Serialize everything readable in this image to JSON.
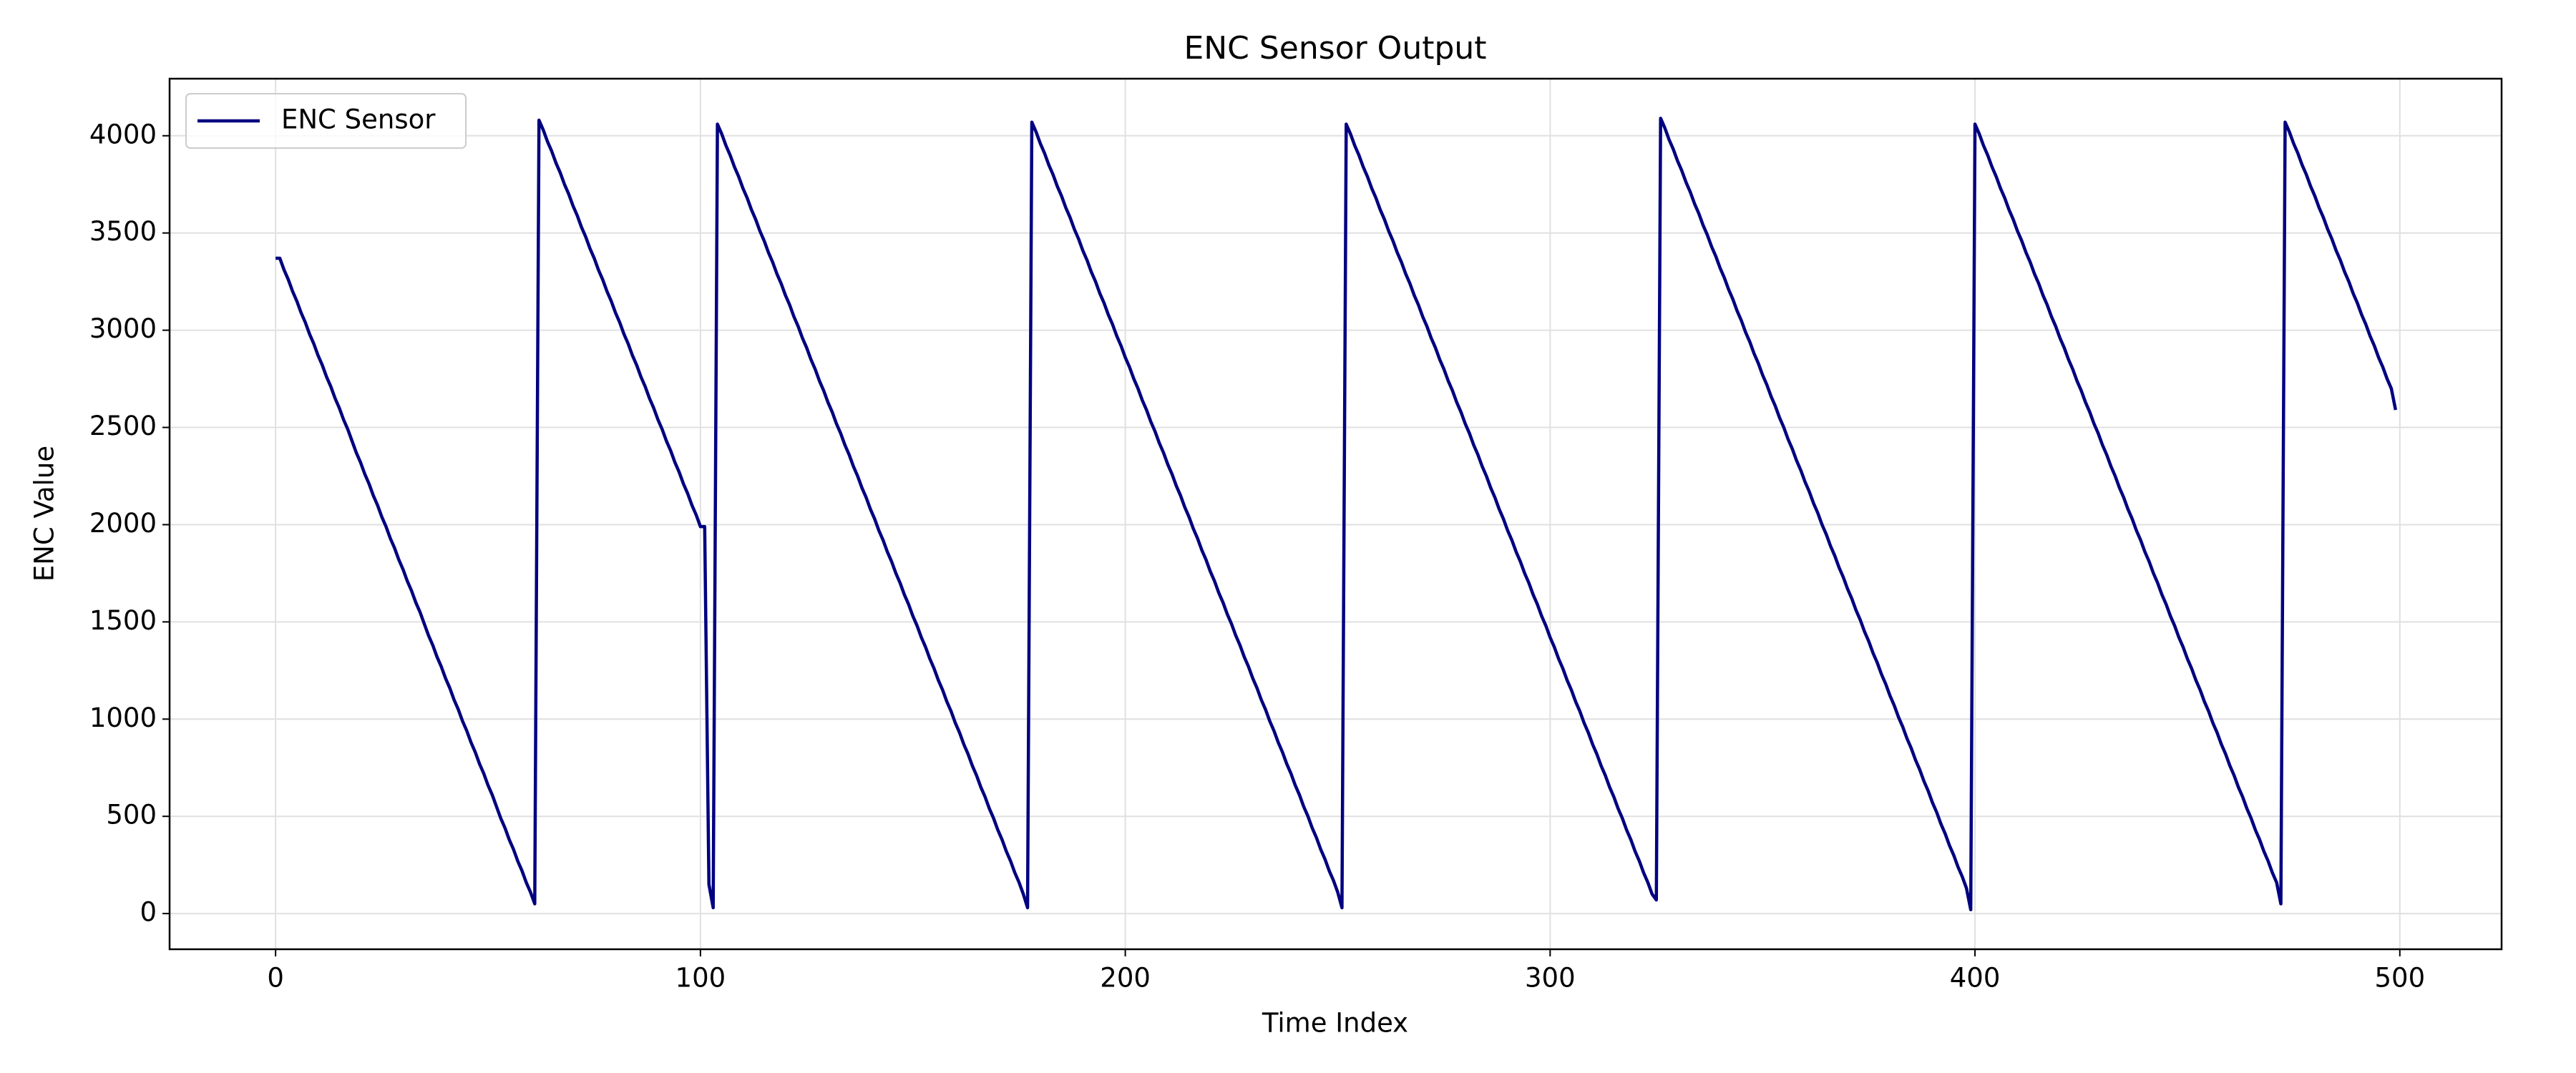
{
  "chart_data": {
    "type": "line",
    "title": "ENC Sensor Output",
    "xlabel": "Time Index",
    "ylabel": "ENC Value",
    "xlim": [
      -24.95,
      523.95
    ],
    "ylim": [
      -183.5,
      4293.5
    ],
    "xticks": [
      0,
      100,
      200,
      300,
      400,
      500
    ],
    "yticks": [
      0,
      500,
      1000,
      1500,
      2000,
      2500,
      3000,
      3500,
      4000
    ],
    "grid": true,
    "legend": "upper left",
    "x": [
      0,
      1,
      2,
      3,
      4,
      5,
      6,
      7,
      8,
      9,
      10,
      11,
      12,
      13,
      14,
      15,
      16,
      17,
      18,
      19,
      20,
      21,
      22,
      23,
      24,
      25,
      26,
      27,
      28,
      29,
      30,
      31,
      32,
      33,
      34,
      35,
      36,
      37,
      38,
      39,
      40,
      41,
      42,
      43,
      44,
      45,
      46,
      47,
      48,
      49,
      50,
      51,
      52,
      53,
      54,
      55,
      56,
      57,
      58,
      59,
      60,
      61,
      62,
      63,
      64,
      65,
      66,
      67,
      68,
      69,
      70,
      71,
      72,
      73,
      74,
      75,
      76,
      77,
      78,
      79,
      80,
      81,
      82,
      83,
      84,
      85,
      86,
      87,
      88,
      89,
      90,
      91,
      92,
      93,
      94,
      95,
      96,
      97,
      98,
      99,
      100,
      101,
      102,
      103,
      104,
      105,
      106,
      107,
      108,
      109,
      110,
      111,
      112,
      113,
      114,
      115,
      116,
      117,
      118,
      119,
      120,
      121,
      122,
      123,
      124,
      125,
      126,
      127,
      128,
      129,
      130,
      131,
      132,
      133,
      134,
      135,
      136,
      137,
      138,
      139,
      140,
      141,
      142,
      143,
      144,
      145,
      146,
      147,
      148,
      149,
      150,
      151,
      152,
      153,
      154,
      155,
      156,
      157,
      158,
      159,
      160,
      161,
      162,
      163,
      164,
      165,
      166,
      167,
      168,
      169,
      170,
      171,
      172,
      173,
      174,
      175,
      176,
      177,
      178,
      179,
      180,
      181,
      182,
      183,
      184,
      185,
      186,
      187,
      188,
      189,
      190,
      191,
      192,
      193,
      194,
      195,
      196,
      197,
      198,
      199,
      200,
      201,
      202,
      203,
      204,
      205,
      206,
      207,
      208,
      209,
      210,
      211,
      212,
      213,
      214,
      215,
      216,
      217,
      218,
      219,
      220,
      221,
      222,
      223,
      224,
      225,
      226,
      227,
      228,
      229,
      230,
      231,
      232,
      233,
      234,
      235,
      236,
      237,
      238,
      239,
      240,
      241,
      242,
      243,
      244,
      245,
      246,
      247,
      248,
      249,
      250,
      251,
      252,
      253,
      254,
      255,
      256,
      257,
      258,
      259,
      260,
      261,
      262,
      263,
      264,
      265,
      266,
      267,
      268,
      269,
      270,
      271,
      272,
      273,
      274,
      275,
      276,
      277,
      278,
      279,
      280,
      281,
      282,
      283,
      284,
      285,
      286,
      287,
      288,
      289,
      290,
      291,
      292,
      293,
      294,
      295,
      296,
      297,
      298,
      299,
      300,
      301,
      302,
      303,
      304,
      305,
      306,
      307,
      308,
      309,
      310,
      311,
      312,
      313,
      314,
      315,
      316,
      317,
      318,
      319,
      320,
      321,
      322,
      323,
      324,
      325,
      326,
      327,
      328,
      329,
      330,
      331,
      332,
      333,
      334,
      335,
      336,
      337,
      338,
      339,
      340,
      341,
      342,
      343,
      344,
      345,
      346,
      347,
      348,
      349,
      350,
      351,
      352,
      353,
      354,
      355,
      356,
      357,
      358,
      359,
      360,
      361,
      362,
      363,
      364,
      365,
      366,
      367,
      368,
      369,
      370,
      371,
      372,
      373,
      374,
      375,
      376,
      377,
      378,
      379,
      380,
      381,
      382,
      383,
      384,
      385,
      386,
      387,
      388,
      389,
      390,
      391,
      392,
      393,
      394,
      395,
      396,
      397,
      398,
      399,
      400,
      401,
      402,
      403,
      404,
      405,
      406,
      407,
      408,
      409,
      410,
      411,
      412,
      413,
      414,
      415,
      416,
      417,
      418,
      419,
      420,
      421,
      422,
      423,
      424,
      425,
      426,
      427,
      428,
      429,
      430,
      431,
      432,
      433,
      434,
      435,
      436,
      437,
      438,
      439,
      440,
      441,
      442,
      443,
      444,
      445,
      446,
      447,
      448,
      449,
      450,
      451,
      452,
      453,
      454,
      455,
      456,
      457,
      458,
      459,
      460,
      461,
      462,
      463,
      464,
      465,
      466,
      467,
      468,
      469,
      470,
      471,
      472,
      473,
      474,
      475,
      476,
      477,
      478,
      479,
      480,
      481,
      482,
      483,
      484,
      485,
      486,
      487,
      488,
      489,
      490,
      491,
      492,
      493,
      494,
      495,
      496,
      497,
      498,
      499
    ],
    "series": [
      {
        "name": "ENC Sensor",
        "color": "#000080",
        "values": [
          3370,
          3370,
          3310,
          3260,
          3200,
          3150,
          3090,
          3040,
          2980,
          2930,
          2870,
          2820,
          2760,
          2710,
          2650,
          2600,
          2540,
          2490,
          2430,
          2370,
          2320,
          2260,
          2210,
          2150,
          2100,
          2040,
          1990,
          1930,
          1880,
          1820,
          1770,
          1710,
          1660,
          1600,
          1550,
          1490,
          1430,
          1380,
          1320,
          1270,
          1210,
          1160,
          1100,
          1050,
          990,
          940,
          880,
          830,
          770,
          720,
          660,
          610,
          550,
          490,
          440,
          380,
          330,
          270,
          220,
          160,
          110,
          50,
          4080,
          4030,
          3970,
          3920,
          3860,
          3810,
          3750,
          3700,
          3640,
          3590,
          3530,
          3480,
          3420,
          3370,
          3310,
          3260,
          3200,
          3150,
          3090,
          3040,
          2980,
          2930,
          2870,
          2820,
          2760,
          2710,
          2650,
          2600,
          2540,
          2490,
          2430,
          2380,
          2320,
          2270,
          2210,
          2160,
          2100,
          2050,
          1990,
          1990,
          150,
          30,
          4060,
          4010,
          3950,
          3900,
          3840,
          3790,
          3730,
          3680,
          3620,
          3570,
          3510,
          3460,
          3400,
          3350,
          3290,
          3240,
          3180,
          3130,
          3070,
          3020,
          2960,
          2910,
          2850,
          2800,
          2740,
          2690,
          2630,
          2580,
          2520,
          2470,
          2410,
          2360,
          2300,
          2250,
          2190,
          2140,
          2080,
          2030,
          1970,
          1920,
          1860,
          1810,
          1750,
          1700,
          1640,
          1590,
          1530,
          1480,
          1420,
          1370,
          1310,
          1260,
          1200,
          1150,
          1090,
          1040,
          980,
          930,
          870,
          820,
          760,
          710,
          650,
          600,
          540,
          490,
          430,
          380,
          320,
          270,
          210,
          160,
          100,
          30,
          4070,
          4020,
          3960,
          3910,
          3850,
          3800,
          3740,
          3690,
          3630,
          3580,
          3520,
          3470,
          3410,
          3360,
          3300,
          3250,
          3190,
          3140,
          3080,
          3030,
          2970,
          2920,
          2860,
          2810,
          2750,
          2700,
          2640,
          2590,
          2530,
          2480,
          2420,
          2370,
          2310,
          2260,
          2200,
          2150,
          2090,
          2040,
          1980,
          1930,
          1870,
          1820,
          1760,
          1710,
          1650,
          1600,
          1540,
          1490,
          1430,
          1380,
          1320,
          1270,
          1210,
          1160,
          1100,
          1050,
          990,
          940,
          880,
          830,
          770,
          720,
          660,
          610,
          550,
          500,
          440,
          390,
          330,
          280,
          220,
          170,
          110,
          30,
          4060,
          4010,
          3950,
          3900,
          3840,
          3790,
          3730,
          3680,
          3620,
          3570,
          3510,
          3460,
          3400,
          3350,
          3290,
          3240,
          3180,
          3130,
          3070,
          3020,
          2960,
          2910,
          2850,
          2800,
          2740,
          2690,
          2630,
          2580,
          2520,
          2470,
          2410,
          2360,
          2300,
          2250,
          2190,
          2140,
          2080,
          2030,
          1970,
          1920,
          1860,
          1810,
          1750,
          1700,
          1640,
          1590,
          1530,
          1480,
          1420,
          1370,
          1310,
          1260,
          1200,
          1150,
          1090,
          1040,
          980,
          930,
          870,
          820,
          760,
          710,
          650,
          600,
          540,
          490,
          430,
          380,
          320,
          270,
          210,
          160,
          100,
          70,
          4090,
          4040,
          3980,
          3930,
          3870,
          3820,
          3760,
          3710,
          3650,
          3600,
          3540,
          3490,
          3430,
          3380,
          3320,
          3270,
          3210,
          3160,
          3100,
          3050,
          2990,
          2940,
          2880,
          2830,
          2770,
          2720,
          2660,
          2610,
          2550,
          2500,
          2440,
          2390,
          2330,
          2280,
          2220,
          2170,
          2110,
          2060,
          2000,
          1950,
          1890,
          1840,
          1780,
          1730,
          1670,
          1620,
          1560,
          1510,
          1450,
          1400,
          1340,
          1290,
          1230,
          1180,
          1120,
          1070,
          1010,
          960,
          900,
          850,
          790,
          740,
          680,
          630,
          570,
          520,
          460,
          410,
          350,
          300,
          240,
          190,
          130,
          20,
          4060,
          4010,
          3950,
          3900,
          3840,
          3790,
          3730,
          3680,
          3620,
          3570,
          3510,
          3460,
          3400,
          3350,
          3290,
          3240,
          3180,
          3130,
          3070,
          3020,
          2960,
          2910,
          2850,
          2800,
          2740,
          2690,
          2630,
          2580,
          2520,
          2470,
          2410,
          2360,
          2300,
          2250,
          2190,
          2140,
          2080,
          2030,
          1970,
          1920,
          1860,
          1810,
          1750,
          1700,
          1640,
          1590,
          1530,
          1480,
          1420,
          1370,
          1310,
          1260,
          1200,
          1150,
          1090,
          1040,
          980,
          930,
          870,
          820,
          760,
          710,
          650,
          600,
          540,
          490,
          430,
          380,
          320,
          270,
          210,
          160,
          50,
          4070,
          4020,
          3960,
          3910,
          3850,
          3800,
          3740,
          3690,
          3630,
          3580,
          3520,
          3470,
          3410,
          3360,
          3300,
          3250,
          3190,
          3140,
          3080,
          3030,
          2970,
          2920,
          2860,
          2810,
          2750,
          2700,
          2590
        ]
      }
    ]
  }
}
